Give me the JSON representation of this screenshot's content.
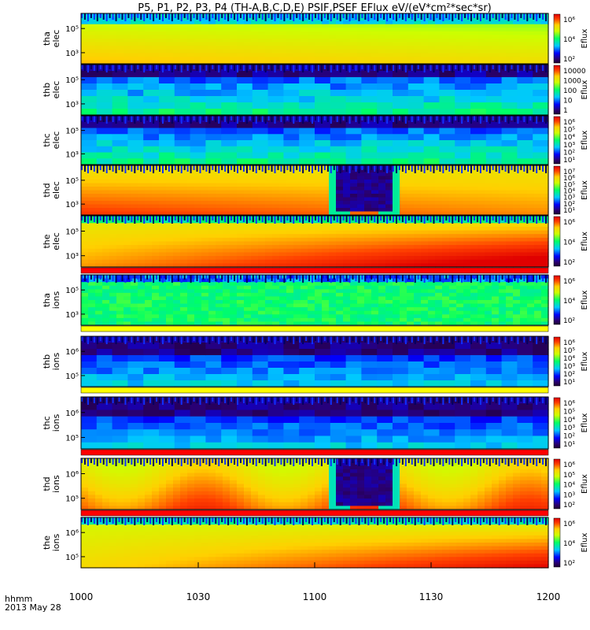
{
  "title": "P5, P1, P2, P3, P4 (TH-A,B,C,D,E) PSIF,PSEF EFlux eV/(eV*cm²*sec*sr)",
  "time_axis": {
    "ticks": [
      "1000",
      "1030",
      "1100",
      "1130",
      "1200"
    ],
    "label_line1": "hhmm",
    "label_line2": "2013 May 28"
  },
  "colorbar_label": "Eflux",
  "chart_data": [
    {
      "type": "heatmap",
      "ylabel_line1": "tha",
      "ylabel_line2": "elec",
      "yticks": [
        "10⁵",
        "10³"
      ],
      "cbar_ticks": [
        "10⁶",
        "10⁴",
        "10²"
      ],
      "feature": "band-top-yellow"
    },
    {
      "type": "heatmap",
      "ylabel_line1": "thb",
      "ylabel_line2": "elec",
      "yticks": [
        "10⁵",
        "10³"
      ],
      "cbar_ticks": [
        "10000",
        "1000",
        "100",
        "10",
        "1"
      ],
      "feature": "blocky-blue"
    },
    {
      "type": "heatmap",
      "ylabel_line1": "thc",
      "ylabel_line2": "elec",
      "yticks": [
        "10⁵",
        "10³"
      ],
      "cbar_ticks": [
        "10⁶",
        "10⁵",
        "10⁴",
        "10³",
        "10²",
        "10¹"
      ],
      "feature": "blocky-blue"
    },
    {
      "type": "heatmap",
      "ylabel_line1": "thd",
      "ylabel_line2": "elec",
      "yticks": [
        "10⁵",
        "10³"
      ],
      "cbar_ticks": [
        "10⁷",
        "10⁶",
        "10⁵",
        "10⁴",
        "10³",
        "10²",
        "10¹"
      ],
      "feature": "hot-gap"
    },
    {
      "type": "heatmap",
      "ylabel_line1": "the",
      "ylabel_line2": "elec",
      "yticks": [
        "10⁵",
        "10³"
      ],
      "cbar_ticks": [
        "10⁶",
        "10⁴",
        "10²"
      ],
      "feature": "hot-rising"
    },
    {
      "type": "heatmap",
      "ylabel_line1": "tha",
      "ylabel_line2": "ions",
      "yticks": [
        "10⁵",
        "10³"
      ],
      "cbar_ticks": [
        "10⁶",
        "10⁴",
        "10²"
      ],
      "feature": "green-noisy"
    },
    {
      "type": "heatmap",
      "ylabel_line1": "thb",
      "ylabel_line2": "ions",
      "yticks": [
        "10⁶",
        "10⁵"
      ],
      "cbar_ticks": [
        "10⁶",
        "10⁵",
        "10⁴",
        "10³",
        "10²",
        "10¹"
      ],
      "feature": "blocky-purple"
    },
    {
      "type": "heatmap",
      "ylabel_line1": "thc",
      "ylabel_line2": "ions",
      "yticks": [
        "10⁶",
        "10⁵"
      ],
      "cbar_ticks": [
        "10⁶",
        "10⁵",
        "10⁴",
        "10³",
        "10²",
        "10¹"
      ],
      "feature": "blocky-purple"
    },
    {
      "type": "heatmap",
      "ylabel_line1": "thd",
      "ylabel_line2": "ions",
      "yticks": [
        "10⁶",
        "10⁵"
      ],
      "cbar_ticks": [
        "10⁶",
        "10⁵",
        "10⁴",
        "10³",
        "10²"
      ],
      "feature": "warm-gap"
    },
    {
      "type": "heatmap",
      "ylabel_line1": "the",
      "ylabel_line2": "ions",
      "yticks": [
        "10⁶",
        "10⁵"
      ],
      "cbar_ticks": [
        "10⁶",
        "10⁴",
        "10²"
      ],
      "feature": "warm-rising"
    }
  ]
}
